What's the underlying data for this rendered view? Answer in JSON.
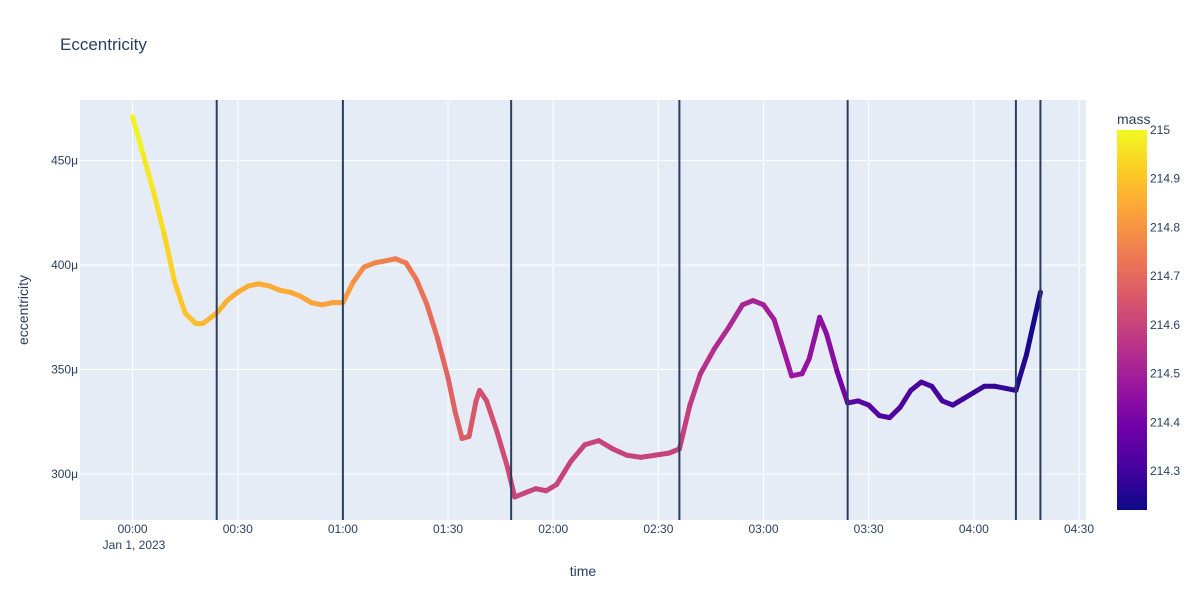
{
  "chart_data": {
    "type": "line",
    "title": "Eccentricity",
    "xlabel": "time",
    "ylabel": "eccentricity",
    "x_tick_labels": [
      "00:00",
      "00:30",
      "01:00",
      "01:30",
      "02:00",
      "02:30",
      "03:00",
      "03:30",
      "04:00",
      "04:30"
    ],
    "x_tick_minutes": [
      0,
      30,
      60,
      90,
      120,
      150,
      180,
      210,
      240,
      270
    ],
    "x_date_label": "Jan 1, 2023",
    "xlim_minutes": [
      -15,
      272
    ],
    "y_tick_labels": [
      "300μ",
      "350μ",
      "400μ",
      "450μ"
    ],
    "y_tick_values": [
      0.0003,
      0.00035,
      0.0004,
      0.00045
    ],
    "ylim": [
      0.000278,
      0.000479
    ],
    "grid": true,
    "colorbar": {
      "title": "mass",
      "tick_labels": [
        "215",
        "214.9",
        "214.8",
        "214.7",
        "214.6",
        "214.5",
        "214.4",
        "214.3"
      ],
      "tick_values": [
        215,
        214.9,
        214.8,
        214.7,
        214.6,
        214.5,
        214.4,
        214.3
      ],
      "range": [
        214.22,
        215
      ],
      "colors": [
        "#0d0887",
        "#46039f",
        "#7201a8",
        "#9c179e",
        "#bd3786",
        "#d8576b",
        "#ed7953",
        "#fb9f3a",
        "#fdca26",
        "#f0f921"
      ]
    },
    "vertical_lines_minutes": [
      24,
      60,
      108,
      156,
      204,
      252,
      259
    ],
    "series": [
      {
        "points": [
          [
            0,
            0.000471
          ],
          [
            3,
            0.000453
          ],
          [
            6,
            0.000435
          ],
          [
            9,
            0.000415
          ],
          [
            12,
            0.000392
          ],
          [
            15,
            0.000377
          ],
          [
            18,
            0.000372
          ],
          [
            20,
            0.000372
          ],
          [
            24,
            0.000377
          ],
          [
            27,
            0.000383
          ],
          [
            30,
            0.000387
          ],
          [
            33,
            0.00039
          ],
          [
            36,
            0.000391
          ],
          [
            39,
            0.00039
          ],
          [
            42,
            0.000388
          ],
          [
            45,
            0.000387
          ],
          [
            48,
            0.000385
          ],
          [
            51,
            0.000382
          ],
          [
            54,
            0.000381
          ],
          [
            57,
            0.000382
          ],
          [
            60,
            0.000382
          ],
          [
            63,
            0.000392
          ],
          [
            66,
            0.000399
          ],
          [
            69,
            0.000401
          ],
          [
            72,
            0.000402
          ],
          [
            75,
            0.000403
          ],
          [
            78,
            0.000401
          ],
          [
            81,
            0.000393
          ],
          [
            84,
            0.000381
          ],
          [
            87,
            0.000365
          ],
          [
            90,
            0.000346
          ],
          [
            92,
            0.00033
          ],
          [
            94,
            0.000317
          ],
          [
            96,
            0.000318
          ],
          [
            98,
            0.000335
          ],
          [
            99,
            0.00034
          ],
          [
            101,
            0.000335
          ],
          [
            104,
            0.00032
          ],
          [
            107,
            0.000303
          ],
          [
            109,
            0.000289
          ],
          [
            112,
            0.000291
          ],
          [
            115,
            0.000293
          ],
          [
            118,
            0.000292
          ],
          [
            121,
            0.000295
          ],
          [
            125,
            0.000306
          ],
          [
            129,
            0.000314
          ],
          [
            133,
            0.000316
          ],
          [
            137,
            0.000312
          ],
          [
            141,
            0.000309
          ],
          [
            145,
            0.000308
          ],
          [
            149,
            0.000309
          ],
          [
            153,
            0.00031
          ],
          [
            156,
            0.000312
          ],
          [
            159,
            0.000333
          ],
          [
            162,
            0.000348
          ],
          [
            166,
            0.00036
          ],
          [
            170,
            0.00037
          ],
          [
            174,
            0.000381
          ],
          [
            177,
            0.000383
          ],
          [
            180,
            0.000381
          ],
          [
            183,
            0.000374
          ],
          [
            186,
            0.000358
          ],
          [
            188,
            0.000347
          ],
          [
            191,
            0.000348
          ],
          [
            193,
            0.000355
          ],
          [
            195,
            0.000368
          ],
          [
            196,
            0.000375
          ],
          [
            198,
            0.000367
          ],
          [
            201,
            0.000349
          ],
          [
            204,
            0.000334
          ],
          [
            207,
            0.000335
          ],
          [
            210,
            0.000333
          ],
          [
            213,
            0.000328
          ],
          [
            216,
            0.000327
          ],
          [
            219,
            0.000332
          ],
          [
            222,
            0.00034
          ],
          [
            225,
            0.000344
          ],
          [
            228,
            0.000342
          ],
          [
            231,
            0.000335
          ],
          [
            234,
            0.000333
          ],
          [
            237,
            0.000336
          ],
          [
            240,
            0.000339
          ],
          [
            243,
            0.000342
          ],
          [
            246,
            0.000342
          ],
          [
            249,
            0.000341
          ],
          [
            252,
            0.00034
          ],
          [
            255,
            0.000357
          ],
          [
            259,
            0.000387
          ]
        ],
        "mass": [
          215.0,
          214.98,
          214.96,
          214.94,
          214.92,
          214.9,
          214.89,
          214.88,
          214.87,
          214.86,
          214.855,
          214.85,
          214.85,
          214.85,
          214.85,
          214.85,
          214.84,
          214.84,
          214.83,
          214.83,
          214.83,
          214.8,
          214.78,
          214.77,
          214.76,
          214.75,
          214.74,
          214.73,
          214.72,
          214.7,
          214.69,
          214.68,
          214.67,
          214.66,
          214.65,
          214.64,
          214.635,
          214.63,
          214.62,
          214.61,
          214.6,
          214.6,
          214.6,
          214.6,
          214.6,
          214.6,
          214.6,
          214.6,
          214.6,
          214.6,
          214.6,
          214.6,
          214.6,
          214.58,
          214.56,
          214.54,
          214.53,
          214.52,
          214.51,
          214.5,
          214.5,
          214.49,
          214.48,
          214.47,
          214.46,
          214.46,
          214.45,
          214.45,
          214.44,
          214.36,
          214.35,
          214.34,
          214.34,
          214.33,
          214.33,
          214.32,
          214.32,
          214.31,
          214.31,
          214.3,
          214.3,
          214.29,
          214.29,
          214.28,
          214.28,
          214.27,
          214.25,
          214.23
        ]
      }
    ]
  }
}
